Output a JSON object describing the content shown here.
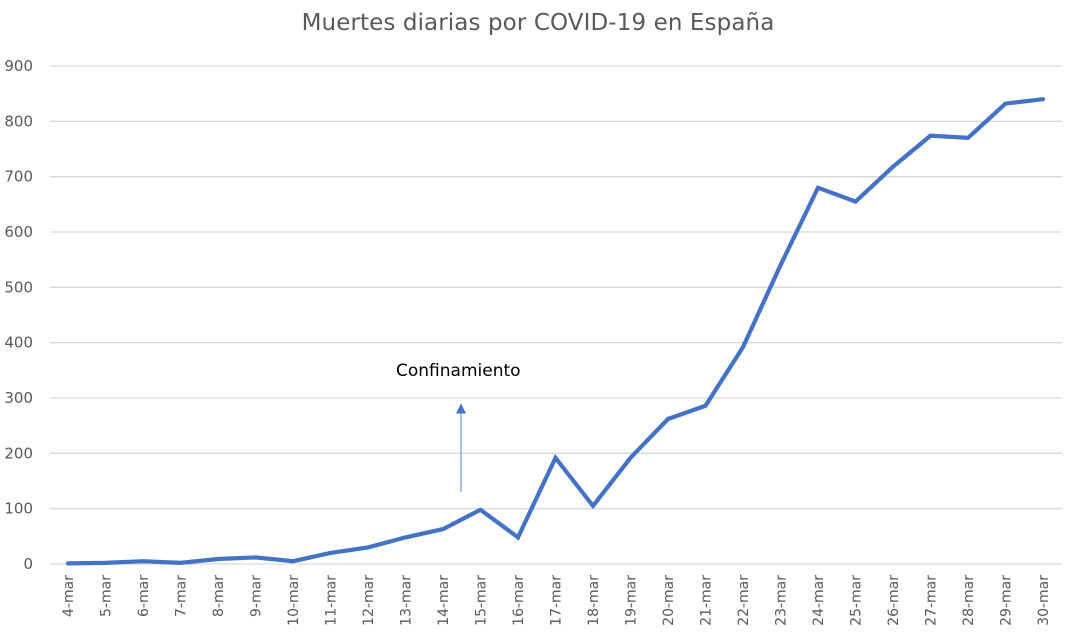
{
  "chart_data": {
    "type": "line",
    "title": "Muertes diarias por COVID-19 en España",
    "xlabel": "",
    "ylabel": "",
    "ylim": [
      0,
      900
    ],
    "yticks": [
      0,
      100,
      200,
      300,
      400,
      500,
      600,
      700,
      800,
      900
    ],
    "grid": true,
    "legend": null,
    "categories": [
      "4-mar",
      "5-mar",
      "6-mar",
      "7-mar",
      "8-mar",
      "9-mar",
      "10-mar",
      "11-mar",
      "12-mar",
      "13-mar",
      "14-mar",
      "15-mar",
      "16-mar",
      "17-mar",
      "18-mar",
      "19-mar",
      "20-mar",
      "21-mar",
      "22-mar",
      "23-mar",
      "24-mar",
      "25-mar",
      "26-mar",
      "27-mar",
      "28-mar",
      "29-mar",
      "30-mar"
    ],
    "series": [
      {
        "name": "Muertes diarias",
        "color": "#4472c4",
        "values": [
          1,
          2,
          5,
          2,
          9,
          12,
          5,
          20,
          30,
          48,
          63,
          98,
          48,
          192,
          105,
          192,
          262,
          286,
          392,
          540,
          680,
          655,
          718,
          774,
          770,
          832,
          840
        ]
      }
    ],
    "annotations": [
      {
        "text": "Confinamiento",
        "type": "arrow",
        "x_between": [
          "14-mar",
          "15-mar"
        ],
        "arrow_from_y": 130,
        "arrow_to_y": 290,
        "color": "#4472c4"
      }
    ]
  },
  "colors": {
    "line": "#4472c4",
    "grid": "#d9d9d9",
    "text": "#595959",
    "annotation_arrow": "#8eaadb"
  }
}
